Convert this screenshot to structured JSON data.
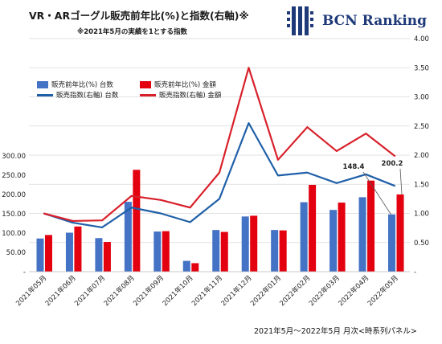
{
  "title": "VR・ARゴーグル販売前年比(%)と指数(右軸)※",
  "subtitle": "※2021年5月の実績を1とする指数",
  "logo_text": "BCN Ranking",
  "footer": "2021年5月～2022年5月 月次<時系列パネル>",
  "colors": {
    "blue": "#4472c4",
    "red": "#e3000f",
    "line_blue": "#1f5fa8",
    "line_red": "#d8202a",
    "grid": "#d9d9d9"
  },
  "chart_data": {
    "type": "bar",
    "categories": [
      "2021年05月",
      "2021年06月",
      "2021年07月",
      "2021年08月",
      "2021年09月",
      "2021年10月",
      "2021年11月",
      "2021年12月",
      "2022年01月",
      "2022年02月",
      "2022年03月",
      "2022年04月",
      "2022年05月"
    ],
    "series": [
      {
        "name": "販売前年比(%) 台数",
        "type": "bar",
        "axis": "left",
        "color": "#4472c4",
        "values": [
          86,
          101,
          87,
          181,
          104,
          28,
          108,
          143,
          108,
          180,
          160,
          193,
          148.4
        ]
      },
      {
        "name": "販売前年比(%) 金額",
        "type": "bar",
        "axis": "left",
        "color": "#e3000f",
        "values": [
          95,
          117,
          77,
          264,
          105,
          22,
          103,
          145,
          107,
          225,
          179,
          236,
          200.2
        ]
      },
      {
        "name": "販売指数(右軸) 台数",
        "type": "line",
        "axis": "right",
        "color": "#1f5fa8",
        "values": [
          1.0,
          0.84,
          0.76,
          1.1,
          1.0,
          0.85,
          1.25,
          2.55,
          1.65,
          1.7,
          1.52,
          1.67,
          1.47
        ]
      },
      {
        "name": "販売指数(右軸) 金額",
        "type": "line",
        "axis": "right",
        "color": "#d8202a",
        "values": [
          1.0,
          0.87,
          0.88,
          1.3,
          1.23,
          1.1,
          1.7,
          3.5,
          1.92,
          2.48,
          2.07,
          2.37,
          1.98
        ]
      }
    ],
    "left_axis": {
      "ticks": [
        "-",
        "50.00",
        "100.00",
        "150.00",
        "200.00",
        "250.00",
        "300.00"
      ],
      "ylim": [
        0,
        300
      ]
    },
    "right_axis": {
      "ticks": [
        "-",
        "0.50",
        "1.00",
        "1.50",
        "2.00",
        "2.50",
        "3.00",
        "3.50",
        "4.00"
      ],
      "ylim": [
        0,
        4
      ]
    },
    "annotations": [
      {
        "label": "148.4",
        "category": "2022年05月"
      },
      {
        "label": "200.2",
        "category": "2022年05月"
      }
    ],
    "grid": true,
    "legend_position": "top-left"
  }
}
